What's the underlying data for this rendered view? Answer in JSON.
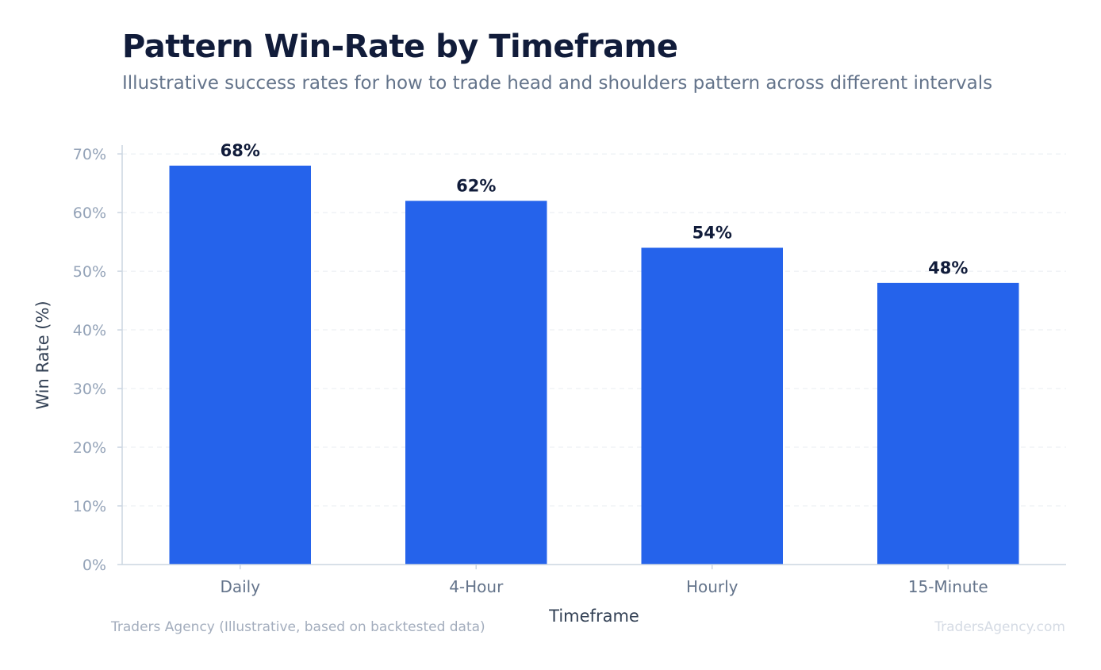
{
  "chart_data": {
    "type": "bar",
    "title": "Pattern Win-Rate by Timeframe",
    "subtitle": "Illustrative success rates for how to trade head and shoulders pattern across different intervals",
    "xlabel": "Timeframe",
    "ylabel": "Win Rate (%)",
    "categories": [
      "Daily",
      "4-Hour",
      "Hourly",
      "15-Minute"
    ],
    "values": [
      68,
      62,
      54,
      48
    ],
    "value_labels": [
      "68%",
      "62%",
      "54%",
      "48%"
    ],
    "yticks": [
      0,
      10,
      20,
      30,
      40,
      50,
      60,
      70
    ],
    "ytick_labels": [
      "0%",
      "10%",
      "20%",
      "30%",
      "40%",
      "50%",
      "60%",
      "70%"
    ],
    "ylim": [
      0,
      71.5
    ],
    "grid": true,
    "legend": "none",
    "bar_color": "#2563eb",
    "source": "Traders Agency (Illustrative, based on backtested data)",
    "watermark": "TradersAgency.com"
  }
}
